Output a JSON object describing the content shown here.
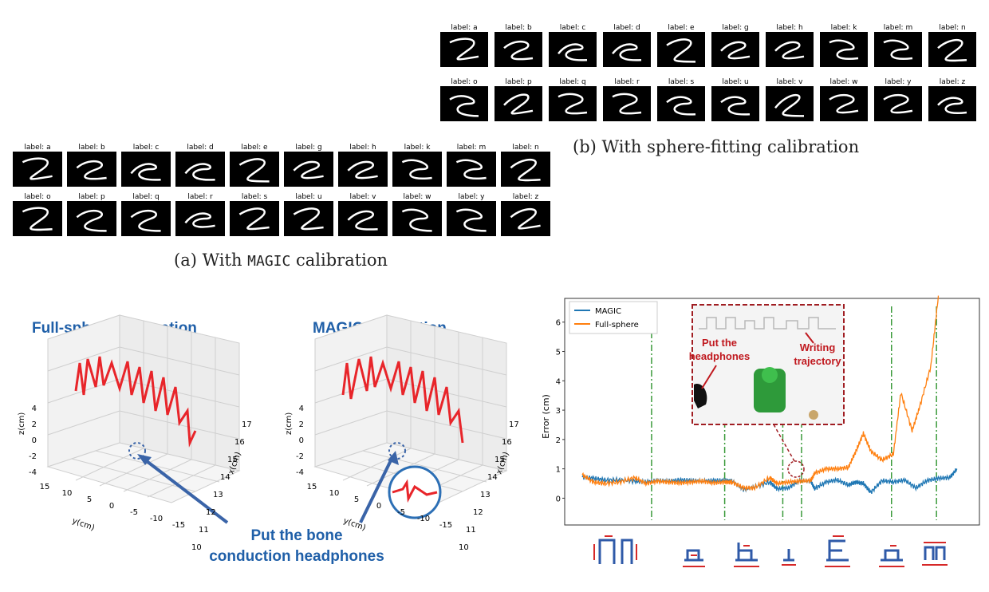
{
  "panel_b": {
    "labels_row1": [
      "label: a",
      "label: b",
      "label: c",
      "label: d",
      "label: e",
      "label: g",
      "label: h",
      "label: k",
      "label: m",
      "label: n"
    ],
    "labels_row2": [
      "label: o",
      "label: p",
      "label: q",
      "label: r",
      "label: s",
      "label: u",
      "label: v",
      "label: w",
      "label: y",
      "label: z"
    ],
    "caption": "(b) With sphere-fitting calibration"
  },
  "panel_a": {
    "labels_row1": [
      "label: a",
      "label: b",
      "label: c",
      "label: d",
      "label: e",
      "label: g",
      "label: h",
      "label: k",
      "label: m",
      "label: n"
    ],
    "labels_row2": [
      "label: o",
      "label: p",
      "label: q",
      "label: r",
      "label: s",
      "label: u",
      "label: v",
      "label: w",
      "label: y",
      "label: z"
    ],
    "caption_prefix": "(a) With ",
    "caption_code": "MAGIC",
    "caption_suffix": " calibration"
  },
  "plots3d": {
    "left_title": "Full-sphere Calibration",
    "right_title": "MAGIC Calibration",
    "annotation_line1": "Put the bone",
    "annotation_line2": "conduction headphones",
    "axes": {
      "x_label": "x(cm)",
      "y_label": "y(cm)",
      "z_label": "z(cm)",
      "x_ticks": [
        "10",
        "11",
        "12",
        "13",
        "14",
        "15",
        "16",
        "17"
      ],
      "y_ticks": [
        "15",
        "10",
        "5",
        "0",
        "-5",
        "-10",
        "-15"
      ],
      "z_ticks": [
        "4",
        "2",
        "0",
        "-2",
        "-4"
      ]
    },
    "colors": {
      "trajectory": "#e8252a",
      "title": "#1f5fa8",
      "arrow": "#3a64a8"
    }
  },
  "error_chart": {
    "chart_data": {
      "type": "line",
      "ylabel": "Error (cm)",
      "yticks": [
        "0",
        "1",
        "2",
        "3",
        "4",
        "5",
        "6"
      ],
      "ylim": [
        -0.75,
        6.7
      ],
      "legend": [
        "MAGIC",
        "Full-sphere"
      ],
      "legend_position": "top-left",
      "series": [
        {
          "name": "MAGIC",
          "color": "#1f77b4",
          "points": [
            [
              0,
              0.72
            ],
            [
              0.03,
              0.68
            ],
            [
              0.06,
              0.62
            ],
            [
              0.1,
              0.62
            ],
            [
              0.14,
              0.58
            ],
            [
              0.17,
              0.55
            ],
            [
              0.2,
              0.6
            ],
            [
              0.23,
              0.58
            ],
            [
              0.26,
              0.62
            ],
            [
              0.29,
              0.6
            ],
            [
              0.32,
              0.58
            ],
            [
              0.35,
              0.6
            ],
            [
              0.38,
              0.6
            ],
            [
              0.4,
              0.58
            ],
            [
              0.43,
              0.3
            ],
            [
              0.46,
              0.38
            ],
            [
              0.5,
              0.55
            ],
            [
              0.52,
              0.32
            ],
            [
              0.55,
              0.35
            ],
            [
              0.58,
              0.6
            ],
            [
              0.61,
              0.58
            ],
            [
              0.62,
              0.32
            ],
            [
              0.65,
              0.55
            ],
            [
              0.68,
              0.62
            ],
            [
              0.71,
              0.45
            ],
            [
              0.73,
              0.55
            ],
            [
              0.75,
              0.5
            ],
            [
              0.77,
              0.2
            ],
            [
              0.8,
              0.6
            ],
            [
              0.83,
              0.55
            ],
            [
              0.86,
              0.62
            ],
            [
              0.89,
              0.35
            ],
            [
              0.92,
              0.6
            ],
            [
              0.95,
              0.68
            ],
            [
              0.98,
              0.7
            ],
            [
              1.0,
              1.0
            ]
          ]
        },
        {
          "name": "Full-sphere",
          "color": "#ff7f0e",
          "points": [
            [
              0,
              0.8
            ],
            [
              0.03,
              0.55
            ],
            [
              0.06,
              0.5
            ],
            [
              0.1,
              0.55
            ],
            [
              0.14,
              0.7
            ],
            [
              0.17,
              0.5
            ],
            [
              0.2,
              0.58
            ],
            [
              0.23,
              0.55
            ],
            [
              0.26,
              0.52
            ],
            [
              0.29,
              0.55
            ],
            [
              0.32,
              0.58
            ],
            [
              0.35,
              0.52
            ],
            [
              0.38,
              0.55
            ],
            [
              0.4,
              0.55
            ],
            [
              0.43,
              0.35
            ],
            [
              0.46,
              0.35
            ],
            [
              0.5,
              0.7
            ],
            [
              0.52,
              0.5
            ],
            [
              0.55,
              0.55
            ],
            [
              0.58,
              0.58
            ],
            [
              0.61,
              0.6
            ],
            [
              0.62,
              0.85
            ],
            [
              0.65,
              1.0
            ],
            [
              0.68,
              1.0
            ],
            [
              0.71,
              1.05
            ],
            [
              0.73,
              1.6
            ],
            [
              0.75,
              2.2
            ],
            [
              0.77,
              1.6
            ],
            [
              0.8,
              1.3
            ],
            [
              0.83,
              1.5
            ],
            [
              0.85,
              3.6
            ],
            [
              0.88,
              2.3
            ],
            [
              0.9,
              3.1
            ],
            [
              0.93,
              4.5
            ],
            [
              0.95,
              6.9
            ]
          ]
        }
      ],
      "segment_dividers": [
        0.185,
        0.38,
        0.535,
        0.585,
        0.825,
        0.945
      ]
    },
    "inset": {
      "label1_line1": "Put the",
      "label1_line2": "headphones",
      "label2_line1": "Writing",
      "label2_line2": "trajectory"
    },
    "colors": {
      "inset_border": "#a01d22",
      "inset_text": "#c0181e",
      "divider": "#3a9a3a",
      "stroke_arrow": "#d62828",
      "stroke_shape": "#2f5aa8"
    }
  }
}
